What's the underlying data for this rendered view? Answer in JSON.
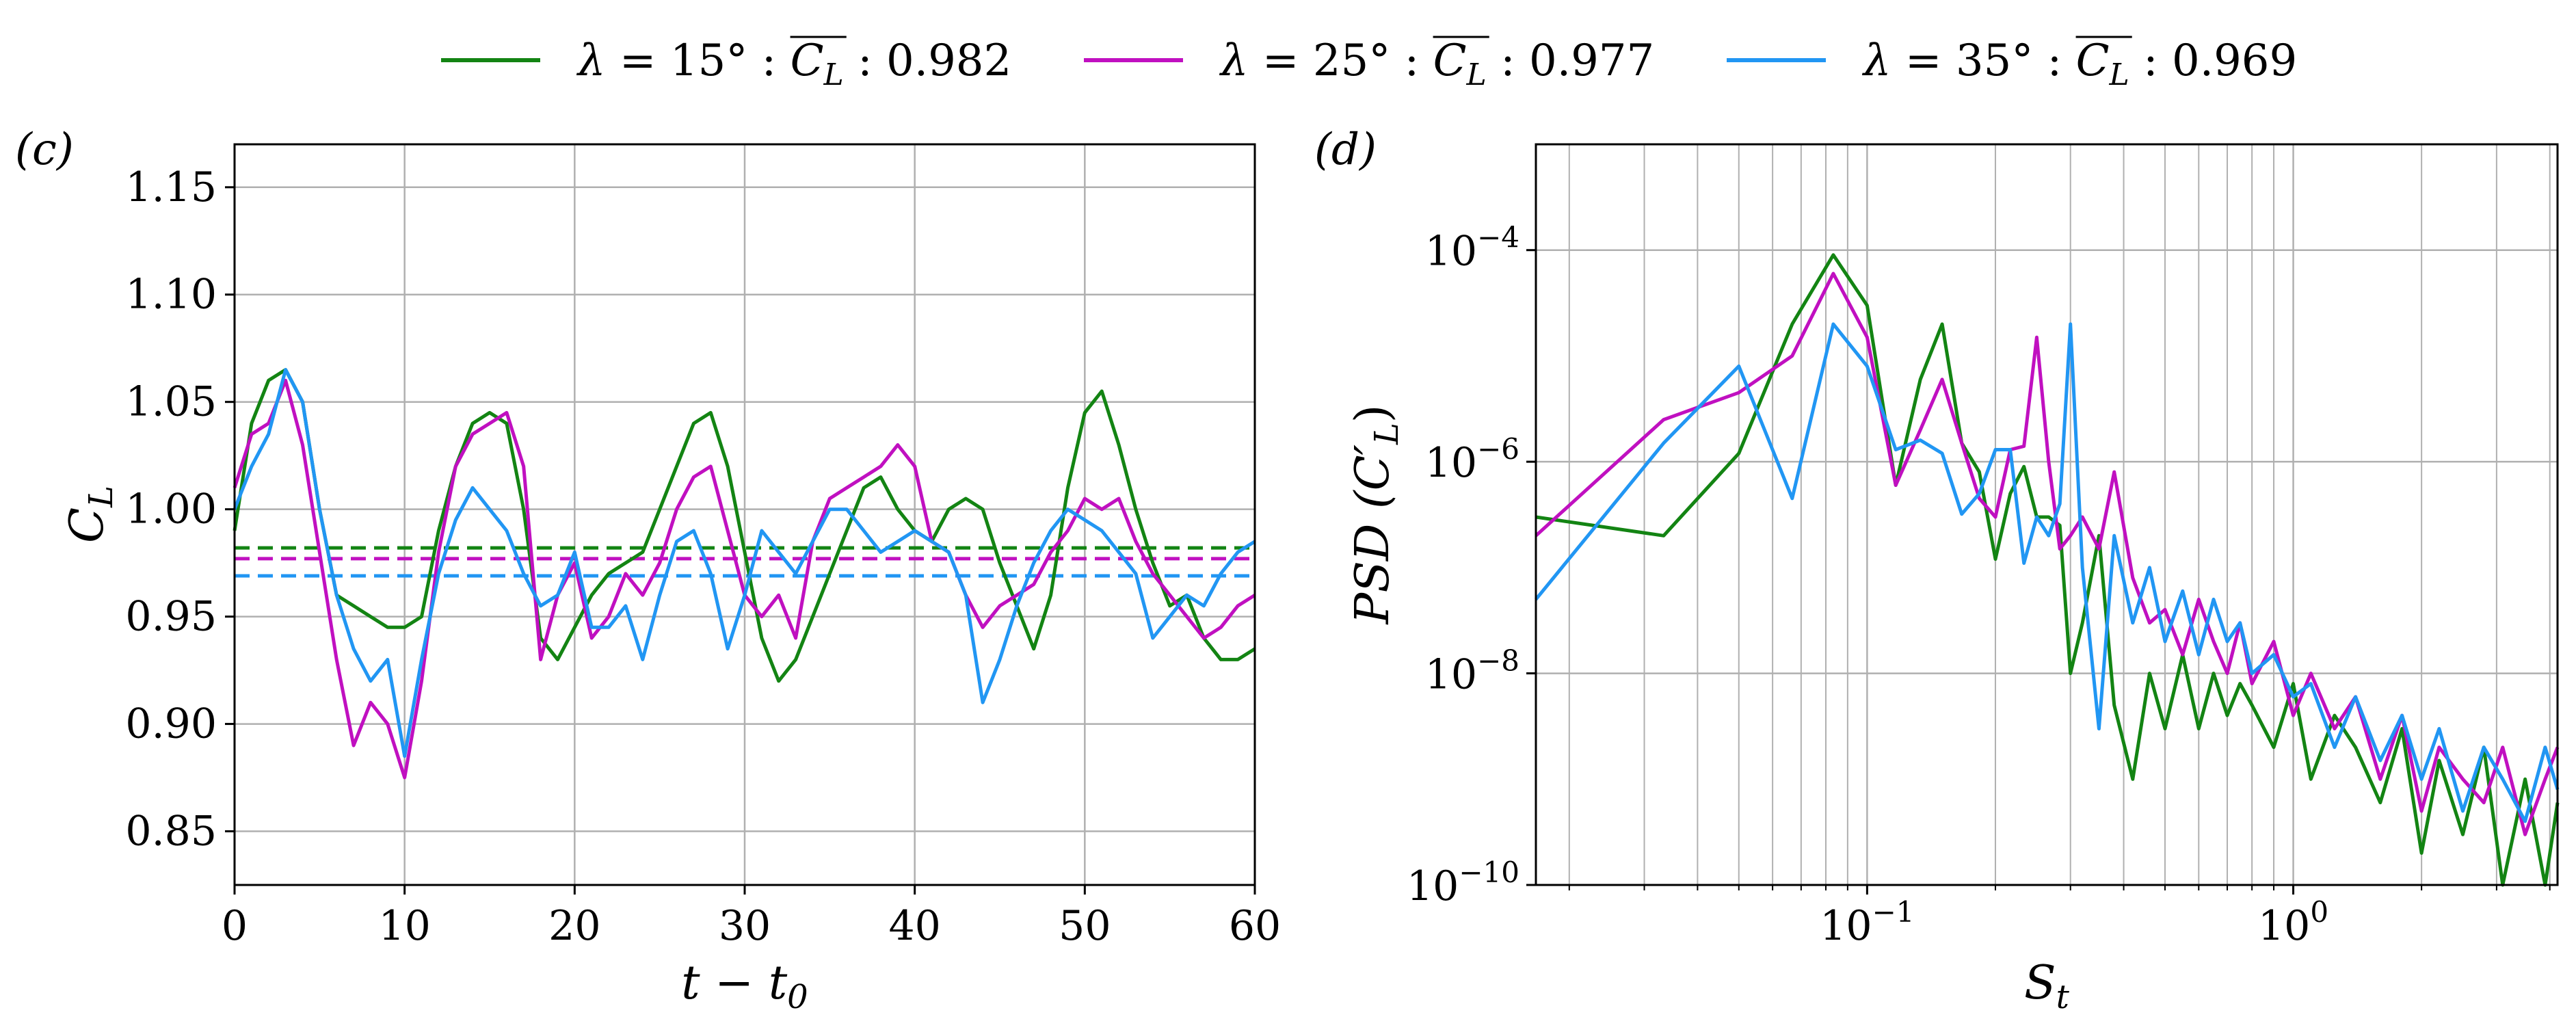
{
  "legend": {
    "position": "top-center",
    "entries": [
      {
        "lambda_deg": "15°",
        "mean_label": "0.982",
        "color": "#138413"
      },
      {
        "lambda_deg": "25°",
        "mean_label": "0.977",
        "color": "#c010c0"
      },
      {
        "lambda_deg": "35°",
        "mean_label": "0.969",
        "color": "#2196f3"
      }
    ]
  },
  "chart_data": [
    {
      "panel": "(c)",
      "type": "line",
      "xlabel": "t − t",
      "xlabel_sub": "0",
      "ylabel": "C",
      "ylabel_sub": "L",
      "xlim": [
        0,
        60
      ],
      "ylim": [
        0.825,
        1.17
      ],
      "xticks": [
        0,
        10,
        20,
        30,
        40,
        50,
        60
      ],
      "yticks": [
        0.85,
        0.9,
        0.95,
        1.0,
        1.05,
        1.1,
        1.15
      ],
      "ytick_labels": [
        "0.85",
        "0.90",
        "0.95",
        "1.00",
        "1.05",
        "1.10",
        "1.15"
      ],
      "grid": true,
      "mean_lines": [
        {
          "series": "λ = 15°",
          "y": 0.982,
          "style": "dashed"
        },
        {
          "series": "λ = 25°",
          "y": 0.977,
          "style": "dashed"
        },
        {
          "series": "λ = 35°",
          "y": 0.969,
          "style": "dashed"
        }
      ],
      "series": [
        {
          "name": "λ = 15°",
          "color": "#138413",
          "x": [
            0,
            1,
            2,
            3,
            4,
            5,
            6,
            7,
            8,
            9,
            10,
            11,
            12,
            13,
            14,
            15,
            16,
            17,
            18,
            19,
            20,
            21,
            22,
            23,
            24,
            25,
            26,
            27,
            28,
            29,
            30,
            31,
            32,
            33,
            34,
            35,
            36,
            37,
            38,
            39,
            40,
            41,
            42,
            43,
            44,
            45,
            46,
            47,
            48,
            49,
            50,
            51,
            52,
            53,
            54,
            55,
            56,
            57,
            58,
            59,
            60
          ],
          "y": [
            0.99,
            1.04,
            1.06,
            1.065,
            1.05,
            1.0,
            0.96,
            0.955,
            0.95,
            0.945,
            0.945,
            0.95,
            0.99,
            1.02,
            1.04,
            1.045,
            1.04,
            1.0,
            0.94,
            0.93,
            0.945,
            0.96,
            0.97,
            0.975,
            0.98,
            1.0,
            1.02,
            1.04,
            1.045,
            1.02,
            0.98,
            0.94,
            0.92,
            0.93,
            0.95,
            0.97,
            0.99,
            1.01,
            1.015,
            1.0,
            0.99,
            0.985,
            1.0,
            1.005,
            1.0,
            0.975,
            0.955,
            0.935,
            0.96,
            1.01,
            1.045,
            1.055,
            1.03,
            1.0,
            0.975,
            0.955,
            0.96,
            0.94,
            0.93,
            0.93,
            0.935
          ]
        },
        {
          "name": "λ = 25°",
          "color": "#c010c0",
          "x": [
            0,
            1,
            2,
            3,
            4,
            5,
            6,
            7,
            8,
            9,
            10,
            11,
            12,
            13,
            14,
            15,
            16,
            17,
            18,
            19,
            20,
            21,
            22,
            23,
            24,
            25,
            26,
            27,
            28,
            29,
            30,
            31,
            32,
            33,
            34,
            35,
            36,
            37,
            38,
            39,
            40,
            41,
            42,
            43,
            44,
            45,
            46,
            47,
            48,
            49,
            50,
            51,
            52,
            53,
            54,
            55,
            56,
            57,
            58,
            59,
            60
          ],
          "y": [
            1.01,
            1.035,
            1.04,
            1.06,
            1.03,
            0.98,
            0.93,
            0.89,
            0.91,
            0.9,
            0.875,
            0.92,
            0.98,
            1.02,
            1.035,
            1.04,
            1.045,
            1.02,
            0.93,
            0.96,
            0.975,
            0.94,
            0.95,
            0.97,
            0.96,
            0.975,
            1.0,
            1.015,
            1.02,
            0.99,
            0.96,
            0.95,
            0.96,
            0.94,
            0.985,
            1.005,
            1.01,
            1.015,
            1.02,
            1.03,
            1.02,
            0.985,
            0.98,
            0.96,
            0.945,
            0.955,
            0.96,
            0.965,
            0.98,
            0.99,
            1.005,
            1.0,
            1.005,
            0.985,
            0.97,
            0.96,
            0.95,
            0.94,
            0.945,
            0.955,
            0.96
          ]
        },
        {
          "name": "λ = 35°",
          "color": "#2196f3",
          "x": [
            0,
            1,
            2,
            3,
            4,
            5,
            6,
            7,
            8,
            9,
            10,
            11,
            12,
            13,
            14,
            15,
            16,
            17,
            18,
            19,
            20,
            21,
            22,
            23,
            24,
            25,
            26,
            27,
            28,
            29,
            30,
            31,
            32,
            33,
            34,
            35,
            36,
            37,
            38,
            39,
            40,
            41,
            42,
            43,
            44,
            45,
            46,
            47,
            48,
            49,
            50,
            51,
            52,
            53,
            54,
            55,
            56,
            57,
            58,
            59,
            60
          ],
          "y": [
            1.0,
            1.02,
            1.035,
            1.065,
            1.05,
            1.0,
            0.96,
            0.935,
            0.92,
            0.93,
            0.885,
            0.93,
            0.97,
            0.995,
            1.01,
            1.0,
            0.99,
            0.97,
            0.955,
            0.96,
            0.98,
            0.945,
            0.945,
            0.955,
            0.93,
            0.96,
            0.985,
            0.99,
            0.97,
            0.935,
            0.96,
            0.99,
            0.98,
            0.97,
            0.985,
            1.0,
            1.0,
            0.99,
            0.98,
            0.985,
            0.99,
            0.985,
            0.98,
            0.96,
            0.91,
            0.93,
            0.955,
            0.975,
            0.99,
            1.0,
            0.995,
            0.99,
            0.98,
            0.97,
            0.94,
            0.95,
            0.96,
            0.955,
            0.97,
            0.98,
            0.985
          ]
        }
      ]
    },
    {
      "panel": "(d)",
      "type": "line",
      "xscale": "log",
      "yscale": "log",
      "xlabel": "S",
      "xlabel_sub": "t",
      "ylabel": "PSD (C′",
      "ylabel_sub": "L",
      "xlim": [
        0.0167,
        4.17
      ],
      "ylim": [
        1e-10,
        0.001
      ],
      "xticks": [
        0.1,
        1
      ],
      "xtick_labels": [
        {
          "base": "10",
          "exp": "−1"
        },
        {
          "base": "10",
          "exp": "0"
        }
      ],
      "yticks": [
        1e-10,
        1e-08,
        1e-06,
        0.0001
      ],
      "ytick_labels": [
        {
          "base": "10",
          "exp": "−10"
        },
        {
          "base": "10",
          "exp": "−8"
        },
        {
          "base": "10",
          "exp": "−6"
        },
        {
          "base": "10",
          "exp": "−4"
        }
      ],
      "grid": true,
      "series": [
        {
          "name": "λ = 15°",
          "color": "#138413",
          "x": [
            0.0167,
            0.0333,
            0.05,
            0.0667,
            0.0833,
            0.1,
            0.1167,
            0.1333,
            0.15,
            0.1667,
            0.1833,
            0.2,
            0.2167,
            0.2333,
            0.25,
            0.2667,
            0.2833,
            0.3,
            0.32,
            0.35,
            0.38,
            0.42,
            0.46,
            0.5,
            0.55,
            0.6,
            0.65,
            0.7,
            0.75,
            0.8,
            0.9,
            1.0,
            1.1,
            1.25,
            1.4,
            1.6,
            1.8,
            2.0,
            2.2,
            2.5,
            2.8,
            3.1,
            3.5,
            3.9,
            4.17
          ],
          "y": [
            3e-07,
            2e-07,
            1.2e-06,
            2e-05,
            9e-05,
            3e-05,
            6e-07,
            6e-06,
            2e-05,
            1.5e-06,
            8e-07,
            1.2e-07,
            5e-07,
            9e-07,
            3e-07,
            3e-07,
            2.5e-07,
            1e-08,
            3e-08,
            2e-07,
            5e-09,
            1e-09,
            1e-08,
            3e-09,
            1.5e-08,
            3e-09,
            1e-08,
            4e-09,
            8e-09,
            5e-09,
            2e-09,
            8e-09,
            1e-09,
            4e-09,
            2e-09,
            6e-10,
            3e-09,
            2e-10,
            1.5e-09,
            3e-10,
            2e-09,
            1e-10,
            1e-09,
            1e-10,
            6e-10
          ]
        },
        {
          "name": "λ = 25°",
          "color": "#c010c0",
          "x": [
            0.0167,
            0.0333,
            0.05,
            0.0667,
            0.0833,
            0.1,
            0.1167,
            0.1333,
            0.15,
            0.1667,
            0.1833,
            0.2,
            0.2167,
            0.2333,
            0.25,
            0.2667,
            0.2833,
            0.3,
            0.32,
            0.35,
            0.38,
            0.42,
            0.46,
            0.5,
            0.55,
            0.6,
            0.65,
            0.7,
            0.75,
            0.8,
            0.9,
            1.0,
            1.1,
            1.25,
            1.4,
            1.6,
            1.8,
            2.0,
            2.2,
            2.5,
            2.8,
            3.1,
            3.5,
            3.9,
            4.17
          ],
          "y": [
            2e-07,
            2.5e-06,
            4.5e-06,
            1e-05,
            6e-05,
            1.5e-05,
            6e-07,
            2e-06,
            6e-06,
            1.5e-06,
            4.5e-07,
            3e-07,
            1.3e-06,
            1.4e-06,
            1.5e-05,
            1e-06,
            1.5e-07,
            2e-07,
            3e-07,
            1.5e-07,
            8e-07,
            8e-08,
            3e-08,
            4e-08,
            1.5e-08,
            5e-08,
            2e-08,
            1e-08,
            3e-08,
            8e-09,
            2e-08,
            4e-09,
            1e-08,
            3e-09,
            6e-09,
            1e-09,
            4e-09,
            5e-10,
            2e-09,
            1e-09,
            6e-10,
            2e-09,
            3e-10,
            1e-09,
            2e-09
          ]
        },
        {
          "name": "λ = 35°",
          "color": "#2196f3",
          "x": [
            0.0167,
            0.0333,
            0.05,
            0.0667,
            0.0833,
            0.1,
            0.1167,
            0.1333,
            0.15,
            0.1667,
            0.1833,
            0.2,
            0.2167,
            0.2333,
            0.25,
            0.2667,
            0.2833,
            0.3,
            0.32,
            0.35,
            0.38,
            0.42,
            0.46,
            0.5,
            0.55,
            0.6,
            0.65,
            0.7,
            0.75,
            0.8,
            0.9,
            1.0,
            1.1,
            1.25,
            1.4,
            1.6,
            1.8,
            2.0,
            2.2,
            2.5,
            2.8,
            3.1,
            3.5,
            3.9,
            4.17
          ],
          "y": [
            5e-08,
            1.5e-06,
            8e-06,
            4.5e-07,
            2e-05,
            8e-06,
            1.3e-06,
            1.6e-06,
            1.2e-06,
            3.2e-07,
            5e-07,
            1.3e-06,
            1.3e-06,
            1.1e-07,
            3e-07,
            2e-07,
            4e-07,
            2e-05,
            1e-07,
            3e-09,
            2e-07,
            3e-08,
            1e-07,
            2e-08,
            6e-08,
            1.5e-08,
            5e-08,
            2e-08,
            3e-08,
            1e-08,
            1.5e-08,
            6e-09,
            8e-09,
            2e-09,
            6e-09,
            1.5e-09,
            4e-09,
            1e-09,
            3e-09,
            5e-10,
            2e-09,
            1e-09,
            4e-10,
            2e-09,
            8e-10
          ]
        }
      ]
    }
  ]
}
